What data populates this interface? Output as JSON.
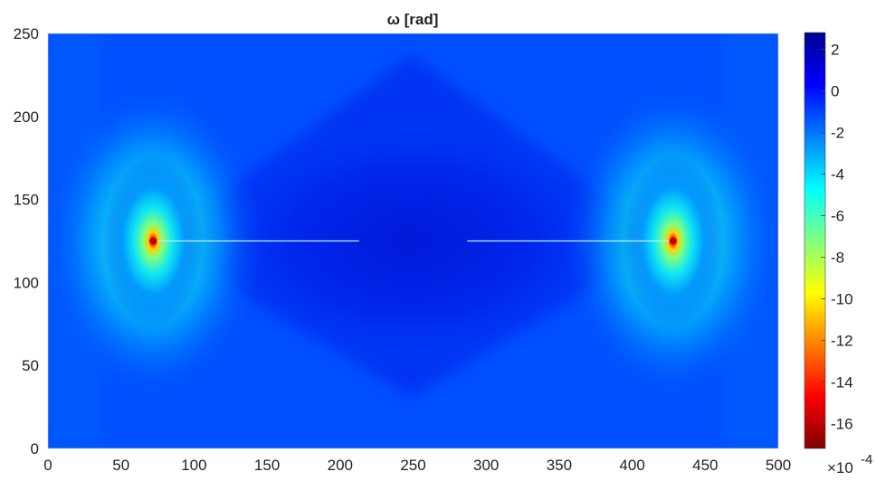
{
  "chart_data": {
    "type": "heatmap",
    "title": "ω [rad]",
    "xlabel": "",
    "ylabel": "",
    "xlim": [
      0,
      500
    ],
    "ylim": [
      0,
      250
    ],
    "x_ticks": [
      0,
      50,
      100,
      150,
      200,
      250,
      300,
      350,
      400,
      450,
      500
    ],
    "y_ticks": [
      0,
      50,
      100,
      150,
      200,
      250
    ],
    "colorbar": {
      "colormap": "jet",
      "range": [
        -17.2,
        2.8
      ],
      "ticks": [
        2,
        0,
        -2,
        -4,
        -6,
        -8,
        -10,
        -12,
        -14,
        -16
      ],
      "multiplier": "×10",
      "multiplier_exponent": "-4"
    },
    "field_description": {
      "background_value": -0.6,
      "central_region_value": 0.4,
      "hotspots": [
        {
          "x": 72,
          "y": 125,
          "value": -17
        },
        {
          "x": 428,
          "y": 125,
          "value": -16
        }
      ],
      "crack_lines": [
        {
          "from": [
            75,
            125
          ],
          "to": [
            213,
            125
          ]
        },
        {
          "from": [
            287,
            125
          ],
          "to": [
            425,
            125
          ]
        }
      ]
    }
  }
}
